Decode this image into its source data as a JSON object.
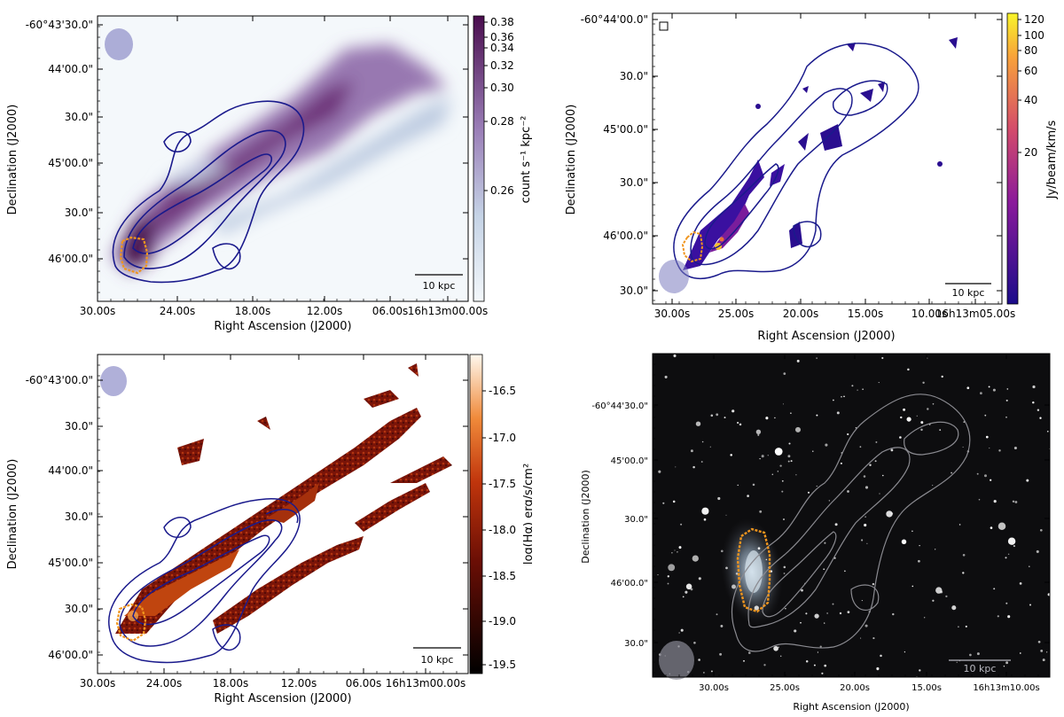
{
  "panels": {
    "xray": {
      "xlabel": "Right Ascension (J2000)",
      "ylabel": "Declination (J2000)",
      "xticks": [
        "30.00s",
        "24.00s",
        "18.00s",
        "12.00s",
        "06.00s",
        "16h13m00.00s"
      ],
      "yticks": [
        "-60°43'30.0\"",
        "44'00.0\"",
        "30.0\"",
        "45'00.0\"",
        "30.0\"",
        "46'00.0\""
      ],
      "colorbar_label": "count s⁻¹ kpc⁻²",
      "colorbar_ticks": [
        "0.38",
        "0.36",
        "0.34",
        "0.32",
        "0.30",
        "0.28",
        "0.26"
      ],
      "scalebar": "10 kpc",
      "colors": {
        "low": "#f4f8fb",
        "mid": "#9b7fb8",
        "high": "#4a0d4e",
        "contour": "#1a1a8c",
        "orange": "#f0951e"
      }
    },
    "co": {
      "xlabel": "Right Ascension (J2000)",
      "ylabel": "Declination (J2000)",
      "xticks": [
        "30.00s",
        "25.00s",
        "20.00s",
        "15.00s",
        "10.00s",
        "16h13m05.00s"
      ],
      "yticks": [
        "-60°44'00.0\"",
        "30.0\"",
        "45'00.0\"",
        "30.0\"",
        "46'00.0\"",
        "30.0\""
      ],
      "colorbar_label": "Jy/beam/km/s",
      "colorbar_ticks": [
        "120",
        "100",
        "80",
        "60",
        "40",
        "20"
      ],
      "scalebar": "10 kpc",
      "colors": {
        "low": "#1b0c8a",
        "mid": "#c1357a",
        "high": "#f8f52a",
        "contour": "#1a1a8c",
        "orange": "#f0951e"
      }
    },
    "halpha": {
      "xlabel": "Right Ascension (J2000)",
      "ylabel": "Declination (J2000)",
      "xticks": [
        "30.00s",
        "24.00s",
        "18.00s",
        "12.00s",
        "06.00s",
        "16h13m00.00s"
      ],
      "yticks": [
        "-60°43'00.0\"",
        "30.0\"",
        "44'00.0\"",
        "30.0\"",
        "45'00.0\"",
        "30.0\"",
        "46'00.0\""
      ],
      "colorbar_label": "log(Hα) erg/s/cm²",
      "colorbar_ticks": [
        "-16.5",
        "-17.0",
        "-17.5",
        "-18.0",
        "-18.5",
        "-19.0",
        "-19.5"
      ],
      "scalebar": "10 kpc",
      "colors": {
        "low": "#000000",
        "mid": "#8b1a0a",
        "high": "#fff8ee",
        "contour": "#1a1a8c",
        "orange": "#f0951e"
      }
    },
    "optical": {
      "xlabel": "Right Ascension (J2000)",
      "ylabel": "Declination (J2000)",
      "xticks": [
        "30.00s",
        "25.00s",
        "20.00s",
        "15.00s",
        "16h13m10.00s"
      ],
      "yticks": [
        "-60°44'30.0\"",
        "45'00.0\"",
        "30.0\"",
        "46'00.0\"",
        "30.0\""
      ],
      "scalebar": "10 kpc",
      "colors": {
        "bg": "#0d0d0f",
        "contour": "#8a8a90",
        "orange": "#f0951e"
      }
    }
  }
}
